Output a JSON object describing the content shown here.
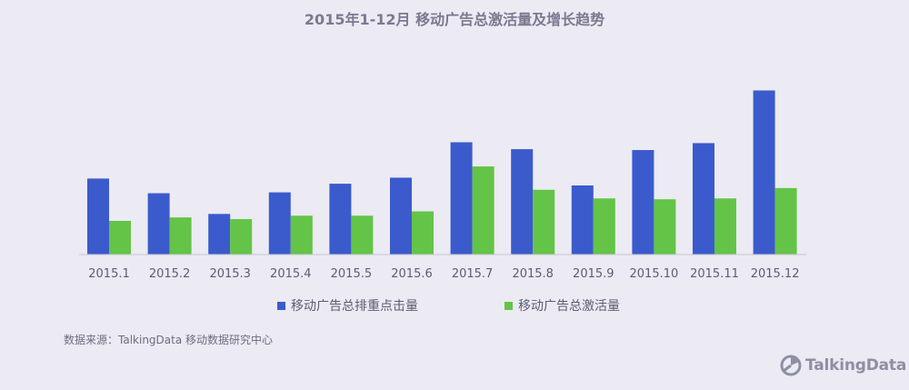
{
  "chart_data": {
    "type": "bar",
    "title": "2015年1-12月 移动广告总激活量及增长趋势",
    "categories": [
      "2015.1",
      "2015.2",
      "2015.3",
      "2015.4",
      "2015.5",
      "2015.6",
      "2015.7",
      "2015.8",
      "2015.9",
      "2015.10",
      "2015.11",
      "2015.12"
    ],
    "series": [
      {
        "name": "移动广告总排重点击量",
        "color": "#3b5bcc",
        "values": [
          88,
          71,
          47,
          72,
          82,
          89,
          130,
          122,
          80,
          121,
          129,
          190
        ]
      },
      {
        "name": "移动广告总激活量",
        "color": "#63c447",
        "values": [
          39,
          43,
          41,
          45,
          45,
          50,
          102,
          75,
          65,
          64,
          65,
          77
        ]
      }
    ],
    "ylim": [
      0,
      200
    ],
    "grid": false,
    "legend": "bottom"
  },
  "source": "数据来源：TalkingData 移动数据研究中心",
  "brand": {
    "name": "TalkingData"
  }
}
